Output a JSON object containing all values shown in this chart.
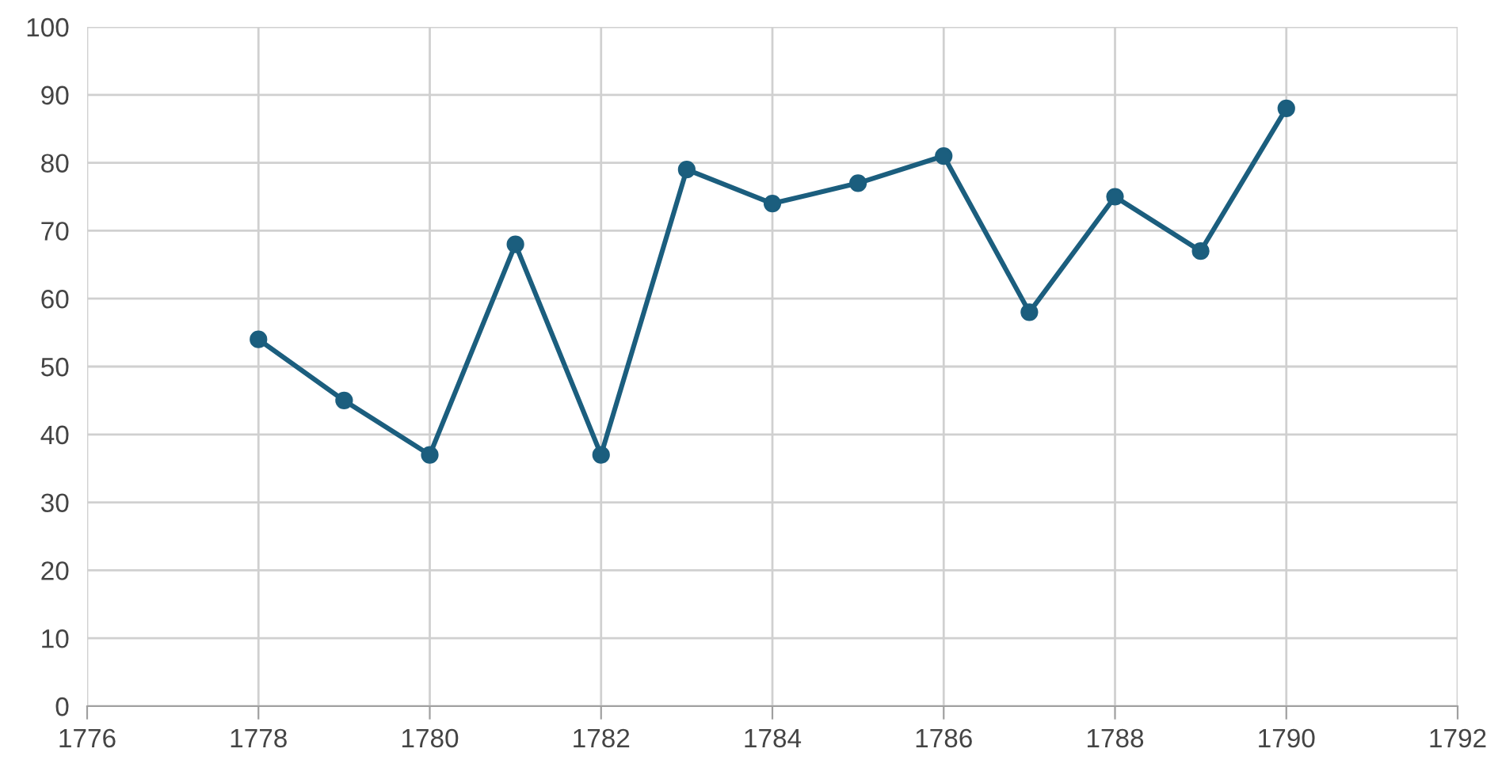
{
  "chart_data": {
    "type": "line",
    "x": [
      1778,
      1779,
      1780,
      1781,
      1782,
      1783,
      1784,
      1785,
      1786,
      1787,
      1788,
      1789,
      1790
    ],
    "series": [
      {
        "color": "#1b5e7e",
        "values": [
          54,
          45,
          37,
          68,
          37,
          79,
          74,
          77,
          81,
          58,
          75,
          67,
          88
        ]
      }
    ],
    "xlim": [
      1776,
      1792
    ],
    "xticks": [
      1776,
      1778,
      1780,
      1782,
      1784,
      1786,
      1788,
      1790,
      1792
    ],
    "ylim": [
      0,
      100
    ],
    "yticks": [
      0,
      10,
      20,
      30,
      40,
      50,
      60,
      70,
      80,
      90,
      100
    ],
    "grid": true,
    "marker": "circle",
    "line_style": "solid"
  }
}
